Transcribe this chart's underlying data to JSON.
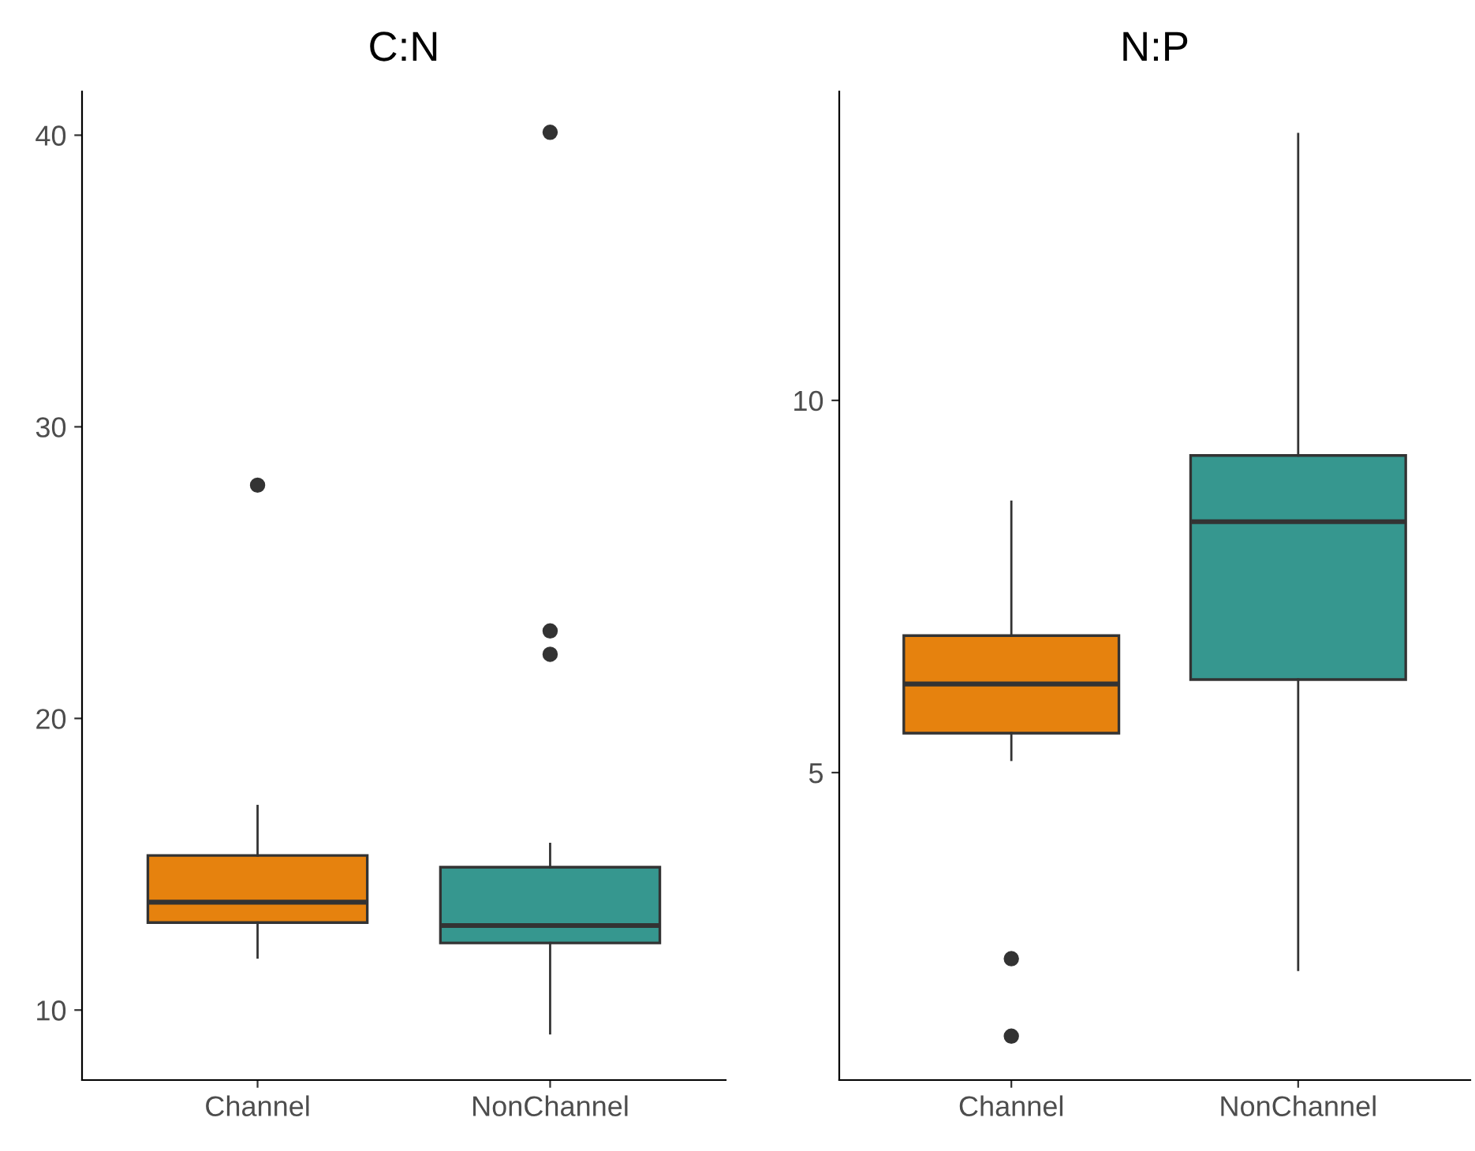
{
  "chart_data": [
    {
      "type": "box",
      "title": "C:N",
      "categories": [
        "Channel",
        "NonChannel"
      ],
      "colors": [
        "#e6820e",
        "#36978f"
      ],
      "boxes": [
        {
          "low": 11.8,
          "q1": 13.0,
          "median": 13.7,
          "q3": 15.3,
          "high": 17.0,
          "outliers": [
            28.0
          ]
        },
        {
          "low": 9.2,
          "q1": 12.3,
          "median": 12.9,
          "q3": 14.9,
          "high": 15.7,
          "outliers": [
            40.1,
            23.0,
            22.2
          ]
        }
      ],
      "ylim": [
        7.6,
        41.5
      ],
      "yticks": [
        10,
        20,
        30,
        40
      ],
      "grid": false,
      "legend": false
    },
    {
      "type": "box",
      "title": "N:P",
      "categories": [
        "Channel",
        "NonChannel"
      ],
      "colors": [
        "#e6820e",
        "#36978f"
      ],
      "boxes": [
        {
          "low": 5.17,
          "q1": 5.53,
          "median": 6.19,
          "q3": 6.84,
          "high": 8.64,
          "outliers": [
            2.5,
            1.46
          ]
        },
        {
          "low": 2.35,
          "q1": 6.25,
          "median": 8.37,
          "q3": 9.26,
          "high": 13.58
        }
      ],
      "ylim": [
        0.87,
        14.15
      ],
      "yticks": [
        5,
        10
      ],
      "grid": false,
      "legend": false
    }
  ]
}
